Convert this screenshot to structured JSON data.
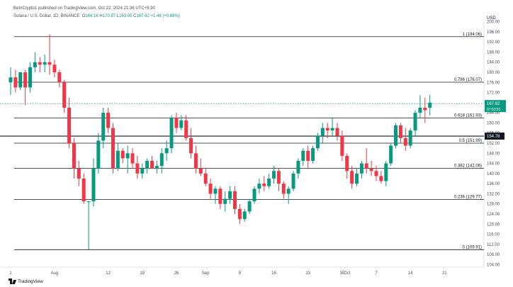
{
  "header": {
    "publisher": "BeInCrypto1 published on TradingView.com, Oct 22, 2024 21:36 UTC+5:30",
    "currency": "USD"
  },
  "legend": {
    "name": "Solana / U.S. Dollar, 1D, BINANCE",
    "o_label": "O",
    "o": "166.16",
    "h_label": "H",
    "h": "170.87",
    "l_label": "L",
    "l": "163.05",
    "c_label": "C",
    "c": "167.62",
    "change": "+1.46 (+0.88%)"
  },
  "footer": {
    "brand": "TradingView"
  },
  "colors": {
    "up": "#089981",
    "down": "#f23645",
    "level": "#131722",
    "last_price": "#089981"
  },
  "chart_data": {
    "type": "candlestick",
    "y_axis": {
      "min": 103,
      "max": 201,
      "ticks": [
        200,
        196,
        192,
        188,
        184,
        180,
        176,
        172,
        168,
        164,
        160,
        156,
        152,
        148,
        144,
        140,
        136,
        132,
        128,
        124,
        120,
        116,
        112,
        108,
        104
      ],
      "tick_labels": [
        "200.00",
        "196.00",
        "192.00",
        "188.00",
        "184.00",
        "180.00",
        "176.00",
        "172.00",
        "168.00",
        "164.00",
        "160.00",
        "156.00",
        "152.00",
        "148.00",
        "144.00",
        "140.00",
        "136.00",
        "132.00",
        "128.00",
        "124.00",
        "120.00",
        "116.00",
        "112.00",
        "108.00",
        "104.00"
      ]
    },
    "x_axis": {
      "labels": [
        {
          "label": "1",
          "day": 0
        },
        {
          "label": "Aug",
          "day": 9
        },
        {
          "label": "12",
          "day": 20
        },
        {
          "label": "19",
          "day": 27
        },
        {
          "label": "26",
          "day": 34
        },
        {
          "label": "Sep",
          "day": 40
        },
        {
          "label": "9",
          "day": 47
        },
        {
          "label": "16",
          "day": 54
        },
        {
          "label": "23",
          "day": 61
        },
        {
          "label": "30",
          "day": 68
        },
        {
          "label": "Oct",
          "day": 69
        },
        {
          "label": "7",
          "day": 75
        },
        {
          "label": "14",
          "day": 82
        },
        {
          "label": "21",
          "day": 89
        }
      ]
    },
    "fib_levels": [
      {
        "label": "1 (194.06)",
        "value": 194.06
      },
      {
        "label": "0.786 (176.07)",
        "value": 176.07
      },
      {
        "label": "0.618 (161.93)",
        "value": 161.93
      },
      {
        "label": "0.5 (151.99)",
        "value": 151.99
      },
      {
        "label": "0.382 (142.06)",
        "value": 142.06
      },
      {
        "label": "0.236 (129.77)",
        "value": 129.77
      },
      {
        "label": "0 (109.91)",
        "value": 109.91
      }
    ],
    "horizontal_line": {
      "value": 154.78,
      "label": "154.78"
    },
    "last_price": {
      "value": 167.62,
      "label": "167.62",
      "countdown": "07:53:51"
    },
    "candles": [
      [
        0,
        176,
        182,
        171,
        178
      ],
      [
        1,
        178,
        181,
        172,
        174
      ],
      [
        2,
        174,
        180,
        173,
        180
      ],
      [
        3,
        180,
        181,
        167,
        174
      ],
      [
        4,
        174,
        184,
        172,
        182
      ],
      [
        5,
        182,
        188,
        180,
        184
      ],
      [
        6,
        184,
        186,
        180,
        183
      ],
      [
        7,
        183,
        187,
        180,
        184
      ],
      [
        8,
        184,
        195,
        179,
        183
      ],
      [
        9,
        183,
        185,
        178,
        180
      ],
      [
        10,
        180,
        181,
        174,
        176
      ],
      [
        11,
        176,
        177,
        164,
        166
      ],
      [
        12,
        166,
        170,
        150,
        152
      ],
      [
        13,
        152,
        154,
        138,
        142
      ],
      [
        14,
        142,
        145,
        135,
        138
      ],
      [
        15,
        138,
        140,
        128,
        129
      ],
      [
        16,
        129,
        129,
        110,
        129
      ],
      [
        17,
        129,
        146,
        127,
        142
      ],
      [
        18,
        142,
        156,
        140,
        153
      ],
      [
        19,
        153,
        166,
        150,
        164
      ],
      [
        20,
        164,
        166,
        156,
        158
      ],
      [
        21,
        158,
        160,
        140,
        142
      ],
      [
        22,
        142,
        152,
        141,
        149
      ],
      [
        23,
        149,
        150,
        144,
        146
      ],
      [
        24,
        146,
        151,
        140,
        148
      ],
      [
        25,
        148,
        150,
        142,
        144
      ],
      [
        26,
        144,
        147,
        138,
        140
      ],
      [
        27,
        140,
        144,
        138,
        142
      ],
      [
        28,
        142,
        146,
        140,
        145
      ],
      [
        29,
        145,
        147,
        142,
        142
      ],
      [
        30,
        142,
        145,
        140,
        143
      ],
      [
        31,
        143,
        150,
        140,
        148
      ],
      [
        32,
        148,
        153,
        145,
        150
      ],
      [
        33,
        150,
        163,
        148,
        162
      ],
      [
        34,
        162,
        164,
        156,
        158
      ],
      [
        35,
        158,
        163,
        157,
        161
      ],
      [
        36,
        161,
        163,
        153,
        154
      ],
      [
        37,
        154,
        158,
        146,
        148
      ],
      [
        38,
        148,
        151,
        140,
        142
      ],
      [
        39,
        142,
        146,
        139,
        140
      ],
      [
        40,
        140,
        142,
        135,
        136
      ],
      [
        41,
        136,
        138,
        130,
        132
      ],
      [
        42,
        132,
        135,
        128,
        134
      ],
      [
        43,
        134,
        135,
        126,
        128
      ],
      [
        44,
        128,
        133,
        125,
        130
      ],
      [
        45,
        130,
        135,
        128,
        133
      ],
      [
        46,
        133,
        135,
        124,
        126
      ],
      [
        47,
        126,
        128,
        120,
        122
      ],
      [
        48,
        122,
        126,
        121,
        125
      ],
      [
        49,
        125,
        130,
        124,
        129
      ],
      [
        50,
        129,
        135,
        128,
        134
      ],
      [
        51,
        134,
        138,
        132,
        136
      ],
      [
        52,
        136,
        139,
        133,
        135
      ],
      [
        53,
        135,
        140,
        134,
        138
      ],
      [
        54,
        138,
        143,
        136,
        141
      ],
      [
        55,
        141,
        142,
        133,
        136
      ],
      [
        56,
        136,
        137,
        130,
        132
      ],
      [
        57,
        132,
        135,
        128,
        134
      ],
      [
        58,
        134,
        141,
        133,
        140
      ],
      [
        59,
        140,
        146,
        138,
        145
      ],
      [
        60,
        145,
        150,
        143,
        149
      ],
      [
        61,
        149,
        151,
        142,
        145
      ],
      [
        62,
        145,
        151,
        144,
        150
      ],
      [
        63,
        150,
        156,
        149,
        155
      ],
      [
        64,
        155,
        160,
        152,
        158
      ],
      [
        65,
        158,
        160,
        154,
        157
      ],
      [
        66,
        157,
        162,
        155,
        158
      ],
      [
        67,
        158,
        160,
        153,
        155
      ],
      [
        68,
        155,
        157,
        145,
        147
      ],
      [
        69,
        147,
        148,
        138,
        141
      ],
      [
        70,
        141,
        143,
        134,
        136
      ],
      [
        71,
        136,
        142,
        135,
        140
      ],
      [
        72,
        140,
        145,
        138,
        144
      ],
      [
        73,
        144,
        150,
        140,
        142
      ],
      [
        74,
        142,
        145,
        139,
        141
      ],
      [
        75,
        141,
        143,
        137,
        139
      ],
      [
        76,
        139,
        141,
        136,
        137
      ],
      [
        77,
        137,
        145,
        135,
        144
      ],
      [
        78,
        144,
        152,
        143,
        151
      ],
      [
        79,
        151,
        160,
        150,
        159
      ],
      [
        80,
        159,
        160,
        152,
        154
      ],
      [
        81,
        154,
        158,
        149,
        151
      ],
      [
        82,
        151,
        158,
        150,
        157
      ],
      [
        83,
        157,
        165,
        155,
        164
      ],
      [
        84,
        164,
        171,
        162,
        166
      ],
      [
        85,
        166,
        170,
        160,
        165
      ],
      [
        86,
        166,
        171,
        163,
        168
      ]
    ]
  }
}
